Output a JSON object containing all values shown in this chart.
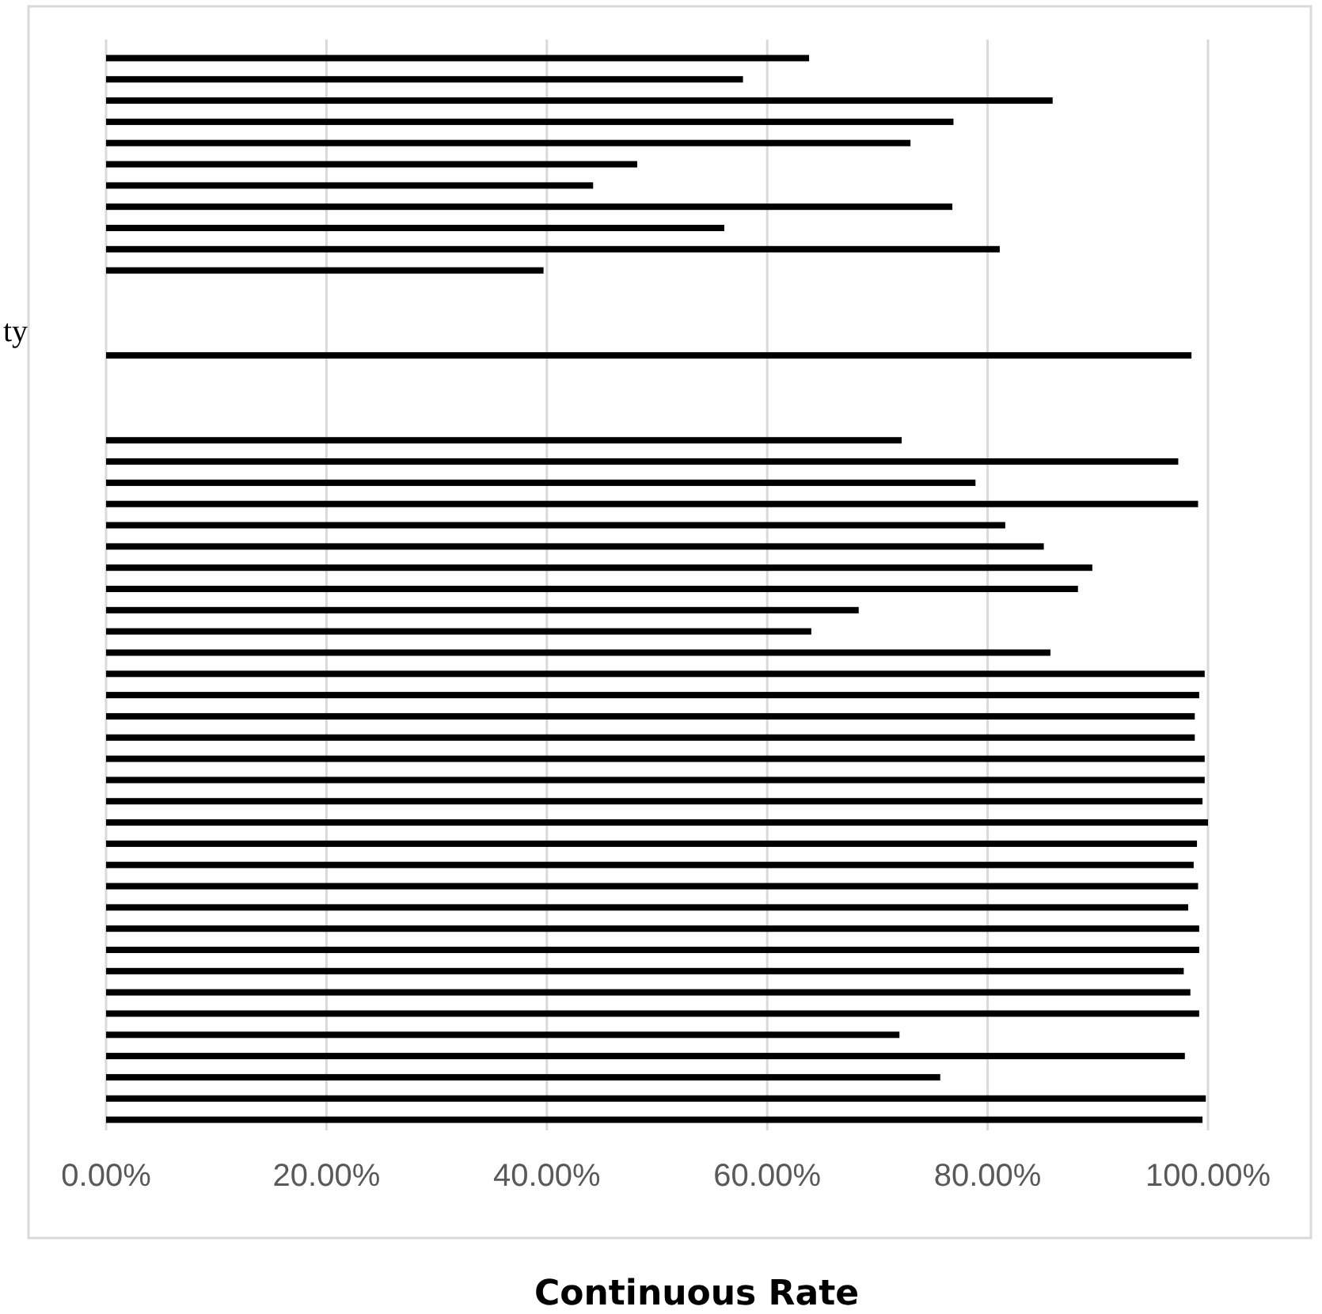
{
  "chart_data": {
    "type": "bar",
    "orientation": "horizontal",
    "xlabel": "Continuous Rate",
    "categories": [
      null,
      null,
      null,
      null,
      null,
      null,
      null,
      null,
      null,
      null,
      null,
      null,
      null,
      "ty",
      null,
      null,
      null,
      null,
      null,
      null,
      null,
      null,
      null,
      null,
      null,
      null,
      null,
      null,
      null,
      null,
      null,
      null,
      null,
      null,
      null,
      null,
      null,
      null,
      null,
      null,
      null,
      null,
      null,
      null,
      null,
      null,
      null,
      null,
      null,
      null,
      null
    ],
    "values": [
      63.8,
      57.8,
      85.9,
      76.9,
      73.0,
      48.2,
      44.2,
      76.8,
      56.1,
      81.1,
      39.7,
      null,
      null,
      null,
      98.5,
      null,
      null,
      null,
      72.2,
      97.3,
      78.9,
      99.1,
      81.6,
      85.1,
      89.5,
      88.2,
      68.3,
      64.0,
      85.7,
      99.7,
      99.2,
      98.8,
      98.8,
      99.7,
      99.7,
      99.5,
      100,
      99.0,
      98.7,
      99.1,
      98.2,
      99.2,
      99.2,
      97.8,
      98.4,
      99.2,
      72.0,
      97.9,
      75.7,
      99.8,
      99.5
    ],
    "color": "#000000",
    "xlim": [
      0,
      100
    ],
    "xticks": [
      {
        "value": 0,
        "label": "0.00%"
      },
      {
        "value": 20,
        "label": "20.00%"
      },
      {
        "value": 40,
        "label": "40.00%"
      },
      {
        "value": 60,
        "label": "60.00%"
      },
      {
        "value": 80,
        "label": "80.00%"
      },
      {
        "value": 100,
        "label": "100.00%"
      }
    ],
    "grid": "x"
  }
}
